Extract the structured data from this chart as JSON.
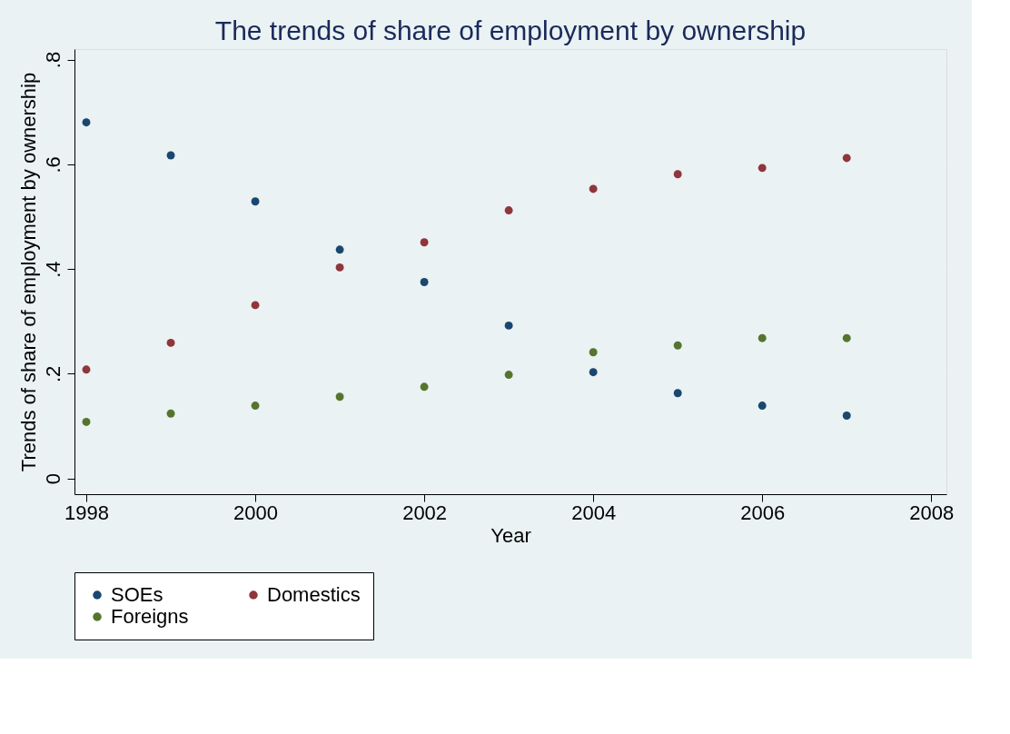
{
  "chart_data": {
    "type": "scatter",
    "title": "The trends of share of employment by ownership",
    "xlabel": "Year",
    "ylabel": "Trends of share of employment by ownership",
    "x": [
      1998,
      1999,
      2000,
      2001,
      2002,
      2003,
      2004,
      2005,
      2006,
      2007
    ],
    "series": [
      {
        "name": "SOEs",
        "color": "#1a476f",
        "values": [
          0.68,
          0.617,
          0.529,
          0.437,
          0.375,
          0.292,
          0.203,
          0.163,
          0.139,
          0.12
        ]
      },
      {
        "name": "Domestics",
        "color": "#90353b",
        "values": [
          0.208,
          0.259,
          0.331,
          0.403,
          0.451,
          0.512,
          0.553,
          0.581,
          0.593,
          0.612
        ]
      },
      {
        "name": "Foreigns",
        "color": "#55752f",
        "values": [
          0.108,
          0.124,
          0.139,
          0.156,
          0.175,
          0.198,
          0.241,
          0.254,
          0.268,
          0.268
        ]
      }
    ],
    "xlim": [
      1997.86,
      2008.18
    ],
    "xticks": [
      1998,
      2000,
      2002,
      2004,
      2006,
      2008
    ],
    "ylim": [
      -0.03,
      0.82
    ],
    "yticks": [
      {
        "value": 0,
        "label": "0"
      },
      {
        "value": 0.2,
        "label": ".2"
      },
      {
        "value": 0.4,
        "label": ".4"
      },
      {
        "value": 0.6,
        "label": ".6"
      },
      {
        "value": 0.8,
        "label": ".8"
      }
    ],
    "grid": "y",
    "legend": "bottom",
    "marker": "circle"
  }
}
